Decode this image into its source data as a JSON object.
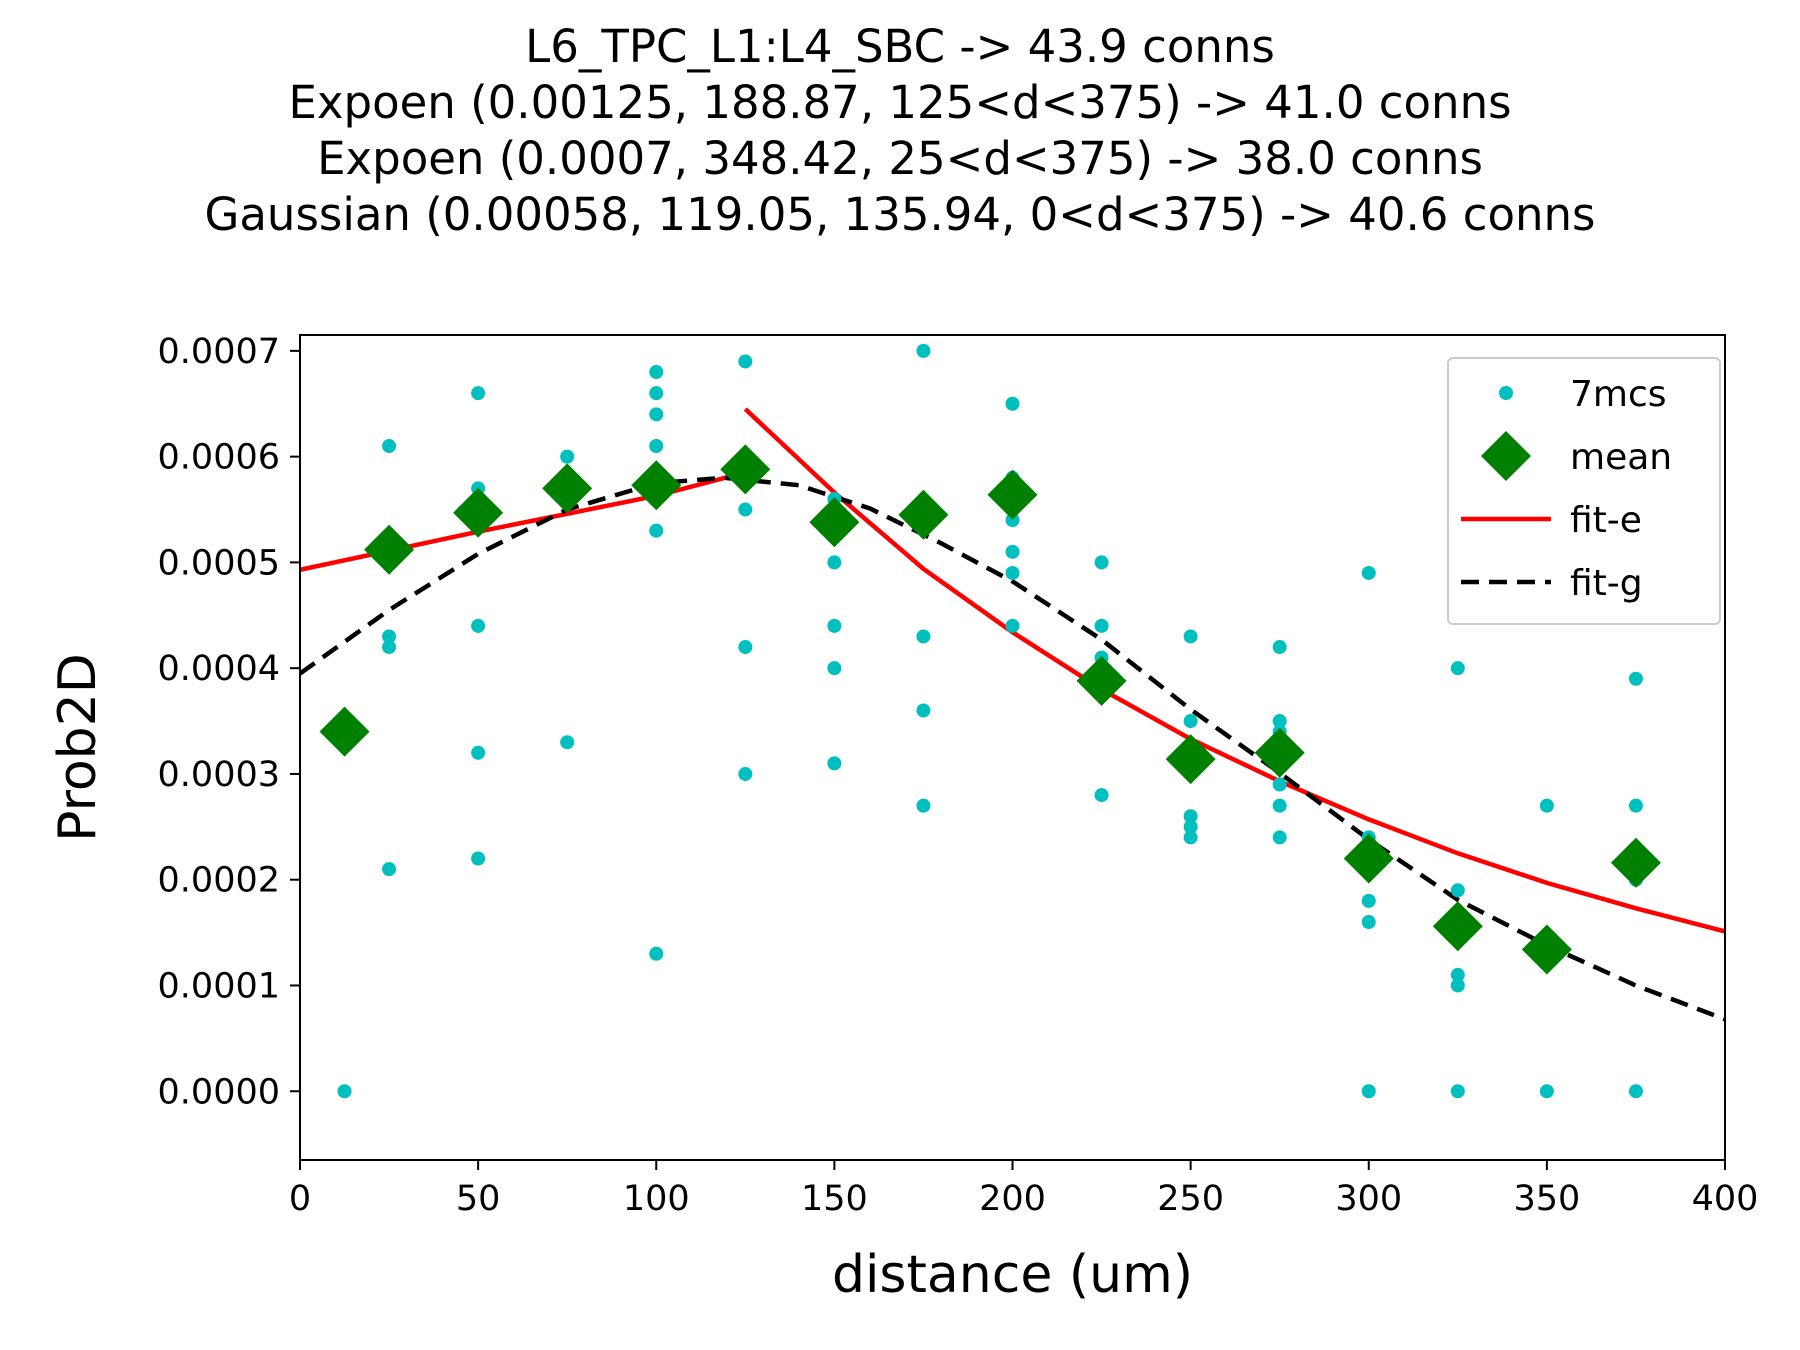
{
  "chart_data": {
    "type": "scatter",
    "title_lines": [
      "L6_TPC_L1:L4_SBC -> 43.9 conns",
      "Expoen (0.00125, 188.87, 125<d<375) -> 41.0 conns",
      "Expoen (0.0007, 348.42, 25<d<375) -> 38.0 conns",
      "Gaussian (0.00058, 119.05, 135.94, 0<d<375) -> 40.6 conns"
    ],
    "xlabel": "distance (um)",
    "ylabel": "Prob2D",
    "xlim": [
      0,
      400
    ],
    "ylim": [
      -6.5e-05,
      0.000715
    ],
    "xticks": [
      0,
      50,
      100,
      150,
      200,
      250,
      300,
      350,
      400
    ],
    "xtick_labels": [
      "0",
      "50",
      "100",
      "150",
      "200",
      "250",
      "300",
      "350",
      "400"
    ],
    "yticks": [
      0.0,
      0.0001,
      0.0002,
      0.0003,
      0.0004,
      0.0005,
      0.0006,
      0.0007
    ],
    "ytick_labels": [
      "0.0000",
      "0.0001",
      "0.0002",
      "0.0003",
      "0.0004",
      "0.0005",
      "0.0006",
      "0.0007"
    ],
    "grid": false,
    "legend_position": "top-right",
    "series": [
      {
        "name": "7mcs",
        "kind": "points",
        "color": "#00bfbf",
        "points": [
          [
            12.5,
            0.0
          ],
          [
            12.5,
            0.00034
          ],
          [
            25,
            0.00061
          ],
          [
            25,
            0.00043
          ],
          [
            25,
            0.00042
          ],
          [
            25,
            0.00021
          ],
          [
            50,
            0.00066
          ],
          [
            50,
            0.00057
          ],
          [
            50,
            0.00044
          ],
          [
            50,
            0.00032
          ],
          [
            50,
            0.00022
          ],
          [
            75,
            0.0006
          ],
          [
            75,
            0.00057
          ],
          [
            75,
            0.00033
          ],
          [
            100,
            0.00068
          ],
          [
            100,
            0.00066
          ],
          [
            100,
            0.00064
          ],
          [
            100,
            0.00061
          ],
          [
            100,
            0.00058
          ],
          [
            100,
            0.00053
          ],
          [
            100,
            0.00013
          ],
          [
            125,
            0.00069
          ],
          [
            125,
            0.00059
          ],
          [
            125,
            0.00055
          ],
          [
            125,
            0.00042
          ],
          [
            125,
            0.0003
          ],
          [
            150,
            0.00056
          ],
          [
            150,
            0.0005
          ],
          [
            150,
            0.00044
          ],
          [
            150,
            0.0004
          ],
          [
            150,
            0.00031
          ],
          [
            175,
            0.0007
          ],
          [
            175,
            0.00055
          ],
          [
            175,
            0.00043
          ],
          [
            175,
            0.00036
          ],
          [
            175,
            0.00027
          ],
          [
            200,
            0.00065
          ],
          [
            200,
            0.00058
          ],
          [
            200,
            0.00054
          ],
          [
            200,
            0.00051
          ],
          [
            200,
            0.00049
          ],
          [
            200,
            0.00044
          ],
          [
            225,
            0.0005
          ],
          [
            225,
            0.00044
          ],
          [
            225,
            0.00041
          ],
          [
            225,
            0.00028
          ],
          [
            250,
            0.00043
          ],
          [
            250,
            0.00035
          ],
          [
            250,
            0.00026
          ],
          [
            250,
            0.00025
          ],
          [
            250,
            0.00024
          ],
          [
            275,
            0.00042
          ],
          [
            275,
            0.00035
          ],
          [
            275,
            0.00034
          ],
          [
            275,
            0.00029
          ],
          [
            275,
            0.00027
          ],
          [
            275,
            0.00024
          ],
          [
            300,
            0.00049
          ],
          [
            300,
            0.00024
          ],
          [
            300,
            0.00018
          ],
          [
            300,
            0.00016
          ],
          [
            300,
            0.0
          ],
          [
            325,
            0.0004
          ],
          [
            325,
            0.00019
          ],
          [
            325,
            0.00011
          ],
          [
            325,
            0.0001
          ],
          [
            325,
            0.0
          ],
          [
            350,
            0.00027
          ],
          [
            350,
            0.0
          ],
          [
            375,
            0.00039
          ],
          [
            375,
            0.00027
          ],
          [
            375,
            0.0002
          ],
          [
            375,
            0.0
          ]
        ]
      },
      {
        "name": "mean",
        "kind": "diamonds",
        "color": "#008000",
        "points": [
          [
            12.5,
            0.00034
          ],
          [
            25,
            0.000512
          ],
          [
            50,
            0.000547
          ],
          [
            75,
            0.00057
          ],
          [
            100,
            0.000573
          ],
          [
            125,
            0.000588
          ],
          [
            150,
            0.000538
          ],
          [
            175,
            0.000545
          ],
          [
            200,
            0.000564
          ],
          [
            225,
            0.000388
          ],
          [
            250,
            0.000314
          ],
          [
            275,
            0.00032
          ],
          [
            300,
            0.00022
          ],
          [
            325,
            0.000156
          ],
          [
            350,
            0.000134
          ],
          [
            375,
            0.000216
          ]
        ]
      },
      {
        "name": "fit-e",
        "kind": "line",
        "color": "#ff0000",
        "segments": [
          [
            [
              0,
              0.000493
            ],
            [
              25,
              0.000511
            ],
            [
              50,
              0.000529
            ],
            [
              75,
              0.000546
            ],
            [
              100,
              0.000563
            ],
            [
              125,
              0.000585
            ]
          ],
          [
            [
              125,
              0.000645
            ],
            [
              150,
              0.000566
            ],
            [
              175,
              0.000494
            ],
            [
              200,
              0.000434
            ],
            [
              225,
              0.00038
            ],
            [
              250,
              0.000333
            ],
            [
              275,
              0.000293
            ],
            [
              300,
              0.000257
            ],
            [
              325,
              0.000225
            ],
            [
              350,
              0.000197
            ],
            [
              375,
              0.000173
            ],
            [
              400,
              0.000151
            ]
          ]
        ]
      },
      {
        "name": "fit-g",
        "kind": "dashed-line",
        "color": "#000000",
        "segments": [
          [
            [
              0,
              0.000395
            ],
            [
              25,
              0.000455
            ],
            [
              50,
              0.000508
            ],
            [
              75,
              0.00055
            ],
            [
              100,
              0.000575
            ],
            [
              119,
              0.00058
            ],
            [
              140,
              0.000573
            ],
            [
              160,
              0.000551
            ],
            [
              180,
              0.000518
            ],
            [
              200,
              0.000482
            ],
            [
              225,
              0.000427
            ],
            [
              250,
              0.000361
            ],
            [
              275,
              0.000301
            ],
            [
              300,
              0.000238
            ],
            [
              325,
              0.000181
            ],
            [
              350,
              0.000138
            ],
            [
              375,
              0.0001
            ],
            [
              400,
              6.8e-05
            ]
          ]
        ]
      }
    ]
  }
}
